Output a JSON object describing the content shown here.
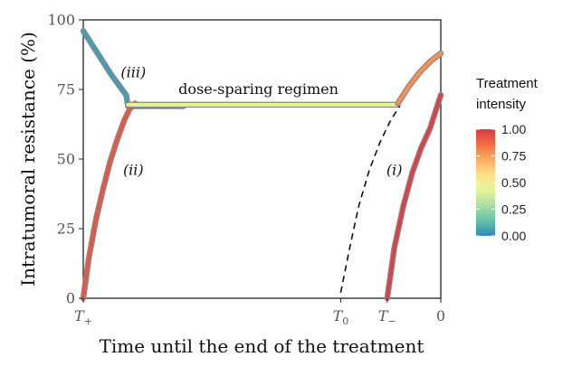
{
  "chart_data": {
    "type": "line",
    "title": "",
    "xlabel": "Time until the end of the treatment",
    "ylabel": "Intratumoral resistance (%)",
    "ylim": [
      0,
      100
    ],
    "xlim": [
      0,
      100
    ],
    "yticks": [
      0,
      25,
      50,
      75,
      100
    ],
    "yticklabels": [
      "0",
      "25",
      "50",
      "75",
      "100"
    ],
    "xticks": [
      {
        "x": 0,
        "label": "T",
        "sub": "+"
      },
      {
        "x": 72,
        "label": "T",
        "sub": "0"
      },
      {
        "x": 85,
        "label": "T",
        "sub": "−"
      },
      {
        "x": 100,
        "label": "0",
        "sub": ""
      }
    ],
    "grid": false,
    "legend": {
      "title_lines": [
        "Treatment",
        "intensity"
      ],
      "placement": "right",
      "ticks": [
        "1.00",
        "0.75",
        "0.50",
        "0.25",
        "0.00"
      ],
      "tick_values": [
        1.0,
        0.75,
        0.5,
        0.25,
        0.0
      ],
      "colors": [
        "#d73a4a",
        "#f46d43",
        "#fdae61",
        "#fee08b",
        "#e6f598",
        "#abdda4",
        "#66c2a5",
        "#3288bd"
      ]
    },
    "annotations": [
      {
        "text": "(iii)",
        "x": 14,
        "y": 81,
        "italic": true
      },
      {
        "text": "dose-sparing regimen",
        "x": 49,
        "y": 75,
        "italic": false
      },
      {
        "text": "(ii)",
        "x": 14,
        "y": 46,
        "italic": true
      },
      {
        "text": "(i)",
        "x": 87,
        "y": 46,
        "italic": true
      }
    ],
    "series": [
      {
        "points": [
          [
            0,
            96
          ],
          [
            4,
            88
          ],
          [
            8,
            80
          ],
          [
            12,
            73
          ],
          [
            12.5,
            69
          ],
          [
            28,
            69
          ]
        ],
        "intensity": 0.05
      },
      {
        "points": [
          [
            0,
            0
          ],
          [
            1.5,
            14
          ],
          [
            3.5,
            28
          ],
          [
            5.5,
            39
          ],
          [
            7.5,
            49
          ],
          [
            9.5,
            57
          ],
          [
            11.5,
            64
          ],
          [
            13,
            68
          ],
          [
            14.5,
            70
          ]
        ],
        "intensity": 0.92
      },
      {
        "points": [
          [
            12.5,
            69.5
          ],
          [
            30,
            69.5
          ],
          [
            50,
            69.5
          ],
          [
            70,
            69.5
          ],
          [
            88,
            69.5
          ]
        ],
        "intensity": 0.45
      },
      {
        "points": [
          [
            88,
            70
          ],
          [
            91,
            76
          ],
          [
            94,
            81
          ],
          [
            97,
            85
          ],
          [
            100,
            88
          ]
        ],
        "intensity": 0.78
      },
      {
        "points": [
          [
            85,
            0
          ],
          [
            87,
            18
          ],
          [
            89.5,
            33
          ],
          [
            92,
            45
          ],
          [
            94.5,
            54
          ],
          [
            97,
            61
          ],
          [
            100,
            73
          ]
        ],
        "intensity": 0.98
      },
      {
        "points": [
          [
            72,
            2
          ],
          [
            74.5,
            18
          ],
          [
            77,
            33
          ],
          [
            80,
            46
          ],
          [
            83,
            56
          ],
          [
            86,
            64
          ],
          [
            88.5,
            69
          ]
        ],
        "intensity": null,
        "dashed": true
      }
    ]
  }
}
